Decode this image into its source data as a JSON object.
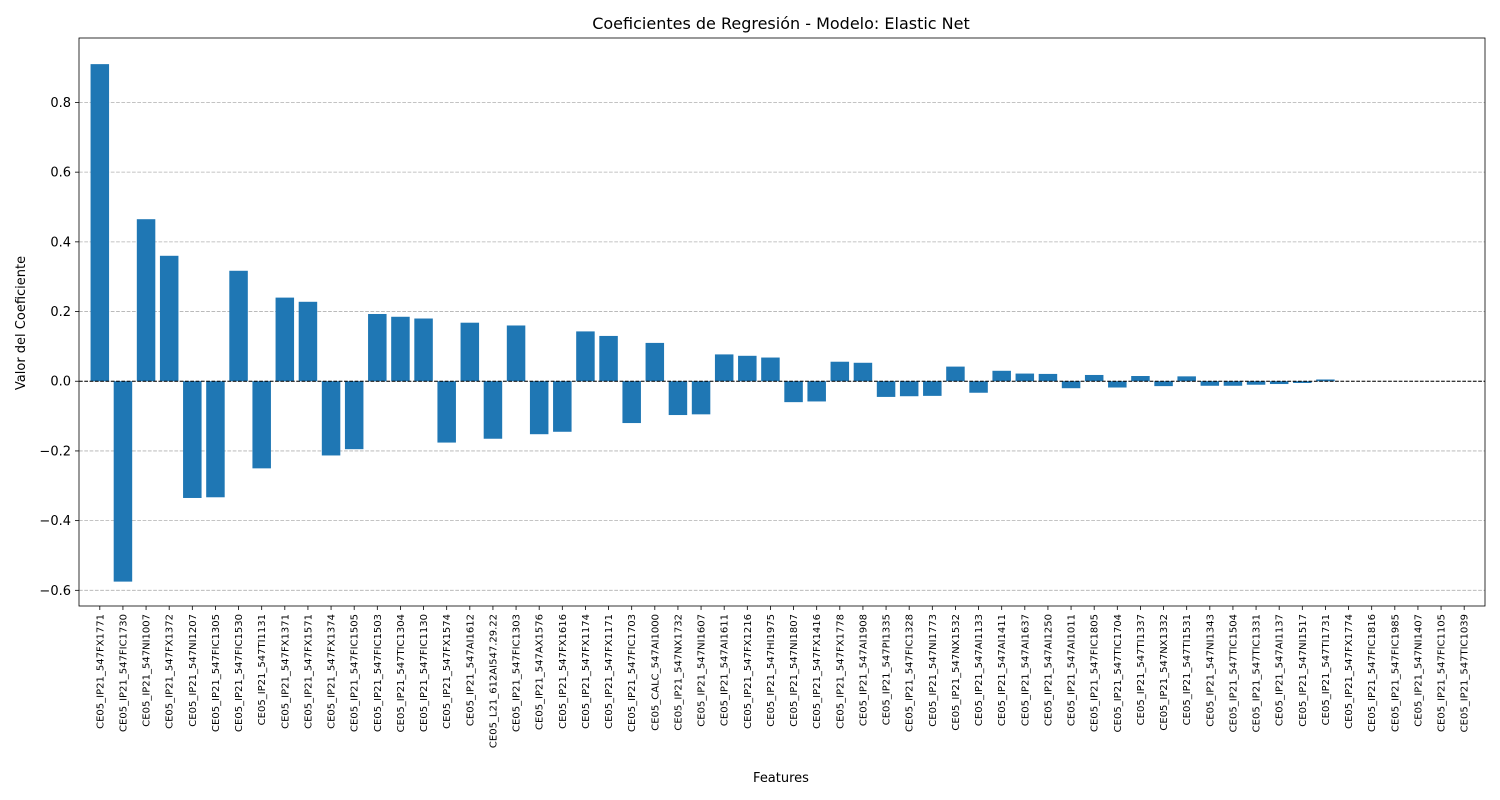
{
  "chart_data": {
    "type": "bar",
    "title": "Coeficientes de Regresión - Modelo: Elastic Net",
    "xlabel": "Features",
    "ylabel": "Valor del Coeficiente",
    "ylim": [
      -0.645,
      0.985
    ],
    "yticks": [
      -0.6,
      -0.4,
      -0.2,
      0.0,
      0.2,
      0.4,
      0.6,
      0.8
    ],
    "ytick_labels": [
      "−0.6",
      "−0.4",
      "−0.2",
      "0.0",
      "0.2",
      "0.4",
      "0.6",
      "0.8"
    ],
    "grid": "y",
    "zero_line": true,
    "bar_color": "#1f77b4",
    "categories": [
      "CE05_IP21_547FX1771",
      "CE05_IP21_547FIC1730",
      "CE05_IP21_547NI1007",
      "CE05_IP21_547FX1372",
      "CE05_IP21_547NI1207",
      "CE05_IP21_547FIC1305",
      "CE05_IP21_547FIC1530",
      "CE05_IP21_547TI1131",
      "CE05_IP21_547FX1371",
      "CE05_IP21_547FX1571",
      "CE05_IP21_547FX1374",
      "CE05_IP21_547FIC1505",
      "CE05_IP21_547FIC1503",
      "CE05_IP21_547TIC1304",
      "CE05_IP21_547FIC1130",
      "CE05_IP21_547FX1574",
      "CE05_IP21_547AI1612",
      "CE05_L21_612AI547.29.22",
      "CE05_IP21_547FIC1303",
      "CE05_IP21_547AX1576",
      "CE05_IP21_547FX1616",
      "CE05_IP21_547FX1174",
      "CE05_IP21_547FX1171",
      "CE05_IP21_547FIC1703",
      "CE05_CALC_547AI1000",
      "CE05_IP21_547NX1732",
      "CE05_IP21_547NI1607",
      "CE05_IP21_547AI1611",
      "CE05_IP21_547FX1216",
      "CE05_IP21_547HI1975",
      "CE05_IP21_547NI1807",
      "CE05_IP21_547FX1416",
      "CE05_IP21_547FX1778",
      "CE05_IP21_547AI1908",
      "CE05_IP21_547PI1335",
      "CE05_IP21_547FIC1328",
      "CE05_IP21_547NI1773",
      "CE05_IP21_547NX1532",
      "CE05_IP21_547AI1133",
      "CE05_IP21_547AI1411",
      "CE05_IP21_547AI1637",
      "CE05_IP21_547AI1250",
      "CE05_IP21_547AI1011",
      "CE05_IP21_547FIC1805",
      "CE05_IP21_547TIC1704",
      "CE05_IP21_547TI1337",
      "CE05_IP21_547NX1332",
      "CE05_IP21_547TI1531",
      "CE05_IP21_547NI1343",
      "CE05_IP21_547TIC1504",
      "CE05_IP21_547TIC1331",
      "CE05_IP21_547AI1137",
      "CE05_IP21_547NI1517",
      "CE05_IP21_547TI1731",
      "CE05_IP21_547FX1774",
      "CE05_IP21_547FIC1816",
      "CE05_IP21_547FIC1985",
      "CE05_IP21_547NI1407",
      "CE05_IP21_547FIC1105",
      "CE05_IP21_547TIC1039"
    ],
    "values": [
      0.91,
      -0.575,
      0.465,
      0.36,
      -0.335,
      -0.333,
      0.317,
      -0.25,
      0.24,
      0.228,
      -0.213,
      -0.195,
      0.193,
      0.185,
      0.18,
      -0.176,
      0.168,
      -0.165,
      0.16,
      -0.152,
      -0.145,
      0.143,
      0.13,
      -0.12,
      0.11,
      -0.097,
      -0.095,
      0.077,
      0.073,
      0.068,
      -0.06,
      -0.058,
      0.056,
      0.053,
      -0.045,
      -0.043,
      -0.042,
      0.042,
      -0.033,
      0.03,
      0.022,
      0.021,
      -0.02,
      0.018,
      -0.018,
      0.015,
      -0.014,
      0.014,
      -0.013,
      -0.013,
      -0.01,
      -0.008,
      -0.005,
      0.005,
      0.0,
      0.0,
      0.0,
      0.0,
      0.0,
      0.0
    ]
  }
}
